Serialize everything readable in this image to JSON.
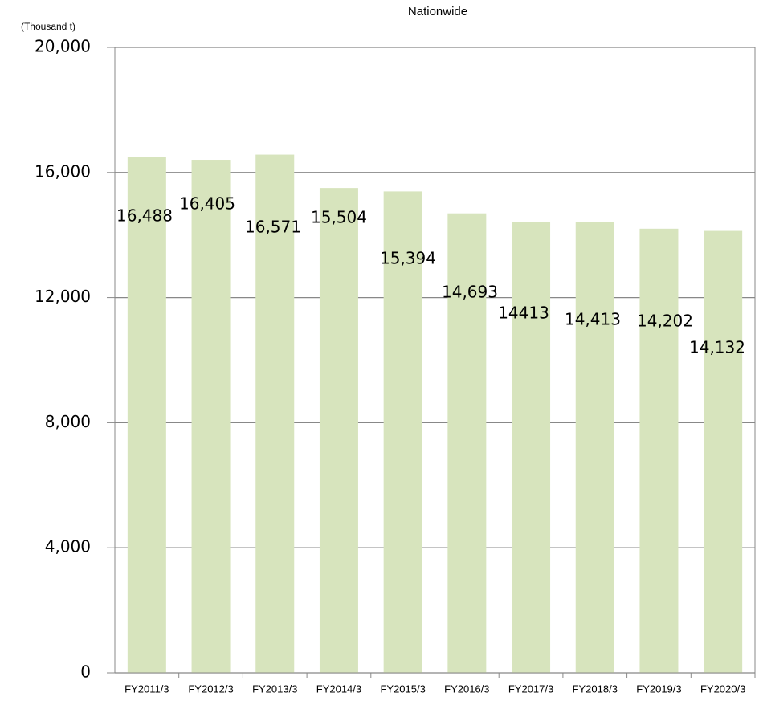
{
  "chart_data": {
    "type": "bar",
    "title": "Nationwide",
    "y_label": "(Thousand t)",
    "categories": [
      "FY2011/3",
      "FY2012/3",
      "FY2013/3",
      "FY2014/3",
      "FY2015/3",
      "FY2016/3",
      "FY2017/3",
      "FY2018/3",
      "FY2019/3",
      "FY2020/3"
    ],
    "values": [
      16488,
      16405,
      16571,
      15504,
      15394,
      14693,
      14413,
      14413,
      14202,
      14132
    ],
    "value_labels": [
      "16,488",
      "16,405",
      "16,571",
      "15,504",
      "15,394",
      "14,693",
      "14413",
      "14,413",
      "14,202",
      "14,132"
    ],
    "color": "#d7e4bd",
    "ylim": [
      0,
      20000
    ],
    "yticks": [
      0,
      {
        "value": 4000,
        "label": "4,000"
      },
      {
        "value": 8000,
        "label": "8,000"
      },
      {
        "value": 12000,
        "label": "12,000"
      },
      {
        "value": 16000,
        "label": "16,000"
      },
      {
        "value": 20000,
        "label": "20,000"
      }
    ],
    "grid": true
  }
}
